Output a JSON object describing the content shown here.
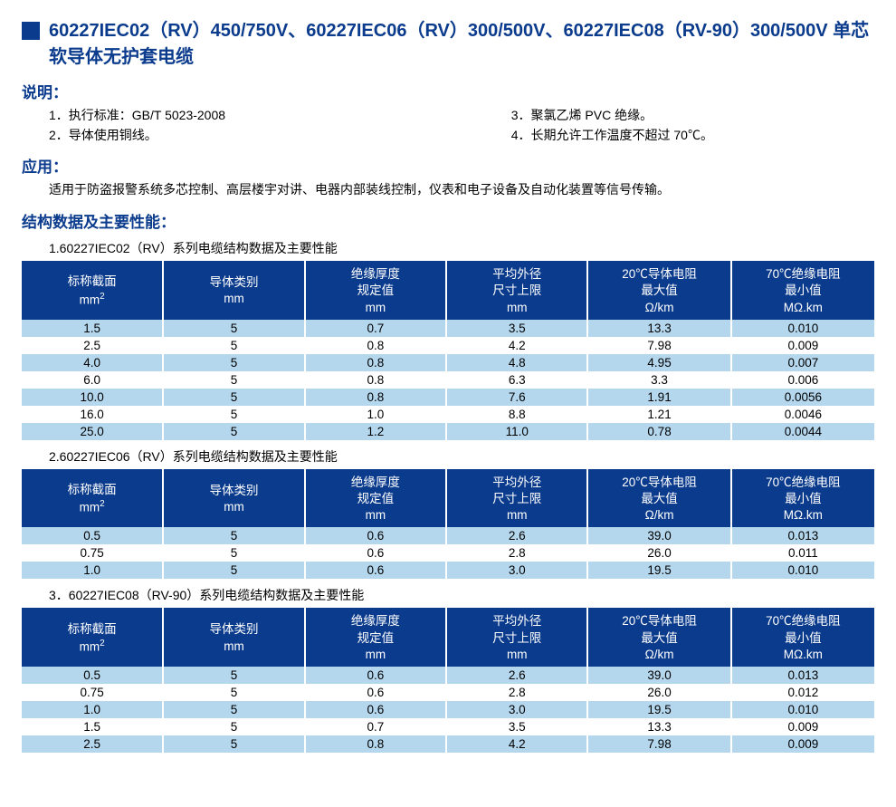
{
  "title": "60227IEC02（RV）450/750V、60227IEC06（RV）300/500V、60227IEC08（RV-90）300/500V 单芯软导体无护套电缆",
  "headings": {
    "shuoming": "说明：",
    "yingyong": "应用：",
    "jiegou": "结构数据及主要性能："
  },
  "description": {
    "left": [
      "1．执行标准：GB/T 5023-2008",
      "2．导体使用铜线。"
    ],
    "right": [
      "3．聚氯乙烯 PVC 绝缘。",
      "4．长期允许工作温度不超过 70℃。"
    ]
  },
  "application": "适用于防盗报警系统多芯控制、高层楼宇对讲、电器内部装线控制，仪表和电子设备及自动化装置等信号传输。",
  "columns": [
    {
      "l1": "标称截面",
      "l2": "mm",
      "sup": "2"
    },
    {
      "l1": "导体类别",
      "l2": "mm",
      "sup": ""
    },
    {
      "l1": "绝缘厚度",
      "l2": "规定值",
      "l3": "mm"
    },
    {
      "l1": "平均外径",
      "l2": "尺寸上限",
      "l3": "mm"
    },
    {
      "l1": "20℃导体电阻",
      "l2": "最大值",
      "l3": "Ω/km"
    },
    {
      "l1": "70℃绝缘电阻",
      "l2": "最小值",
      "l3": "MΩ.km"
    }
  ],
  "col_widths": [
    "16.6%",
    "16.6%",
    "16.6%",
    "16.6%",
    "16.8%",
    "16.8%"
  ],
  "colors": {
    "primary": "#0b3b8c",
    "row_odd": "#b4d7ee",
    "row_even": "#ffffff"
  },
  "tables": [
    {
      "title": "1.60227IEC02（RV）系列电缆结构数据及主要性能",
      "rows": [
        [
          "1.5",
          "5",
          "0.7",
          "3.5",
          "13.3",
          "0.010"
        ],
        [
          "2.5",
          "5",
          "0.8",
          "4.2",
          "7.98",
          "0.009"
        ],
        [
          "4.0",
          "5",
          "0.8",
          "4.8",
          "4.95",
          "0.007"
        ],
        [
          "6.0",
          "5",
          "0.8",
          "6.3",
          "3.3",
          "0.006"
        ],
        [
          "10.0",
          "5",
          "0.8",
          "7.6",
          "1.91",
          "0.0056"
        ],
        [
          "16.0",
          "5",
          "1.0",
          "8.8",
          "1.21",
          "0.0046"
        ],
        [
          "25.0",
          "5",
          "1.2",
          "11.0",
          "0.78",
          "0.0044"
        ]
      ]
    },
    {
      "title": "2.60227IEC06（RV）系列电缆结构数据及主要性能",
      "rows": [
        [
          "0.5",
          "5",
          "0.6",
          "2.6",
          "39.0",
          "0.013"
        ],
        [
          "0.75",
          "5",
          "0.6",
          "2.8",
          "26.0",
          "0.011"
        ],
        [
          "1.0",
          "5",
          "0.6",
          "3.0",
          "19.5",
          "0.010"
        ]
      ]
    },
    {
      "title": "3．60227IEC08（RV-90）系列电缆结构数据及主要性能",
      "rows": [
        [
          "0.5",
          "5",
          "0.6",
          "2.6",
          "39.0",
          "0.013"
        ],
        [
          "0.75",
          "5",
          "0.6",
          "2.8",
          "26.0",
          "0.012"
        ],
        [
          "1.0",
          "5",
          "0.6",
          "3.0",
          "19.5",
          "0.010"
        ],
        [
          "1.5",
          "5",
          "0.7",
          "3.5",
          "13.3",
          "0.009"
        ],
        [
          "2.5",
          "5",
          "0.8",
          "4.2",
          "7.98",
          "0.009"
        ]
      ]
    }
  ]
}
